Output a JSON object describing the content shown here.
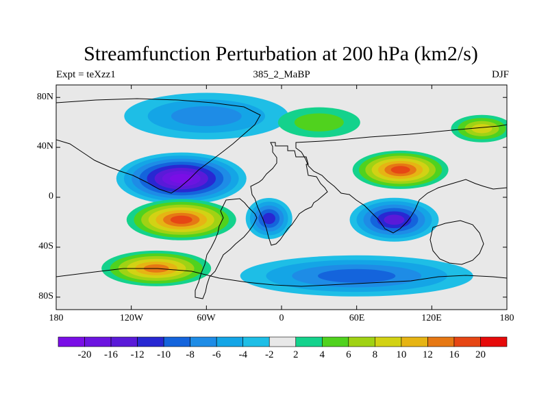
{
  "title": "Streamfunction Perturbation at 200 hPa (km2/s)",
  "subtitle_left": "Expt = teXzz1",
  "subtitle_center": "385_2_MaBP",
  "subtitle_right": "DJF",
  "lat_ticks": [
    "80N",
    "40N",
    "0",
    "40S",
    "80S"
  ],
  "lon_ticks": [
    "180",
    "120W",
    "60W",
    "0",
    "60E",
    "120E",
    "180"
  ],
  "colorbar": {
    "labels": [
      "-20",
      "-16",
      "-12",
      "-10",
      "-8",
      "-6",
      "-4",
      "-2",
      "2",
      "4",
      "6",
      "8",
      "10",
      "12",
      "16",
      "20"
    ],
    "colors": [
      "#7a0ee6",
      "#6c14e0",
      "#5a1ad8",
      "#2828d2",
      "#1464dc",
      "#1e8ce6",
      "#14a5e6",
      "#1ebee6",
      "#e8e8e8",
      "#14d28c",
      "#50d21e",
      "#a0d214",
      "#d2d214",
      "#e6b414",
      "#e67814",
      "#e64614",
      "#e60a0a"
    ]
  },
  "chart_data": {
    "type": "heatmap",
    "variable": "Streamfunction Perturbation at 200 hPa",
    "units": "km2/s",
    "lon_range": [
      -180,
      180
    ],
    "lat_range": [
      -90,
      90
    ],
    "levels": [
      -20,
      -16,
      -12,
      -10,
      -8,
      -6,
      -4,
      -2,
      2,
      4,
      6,
      8,
      10,
      12,
      16,
      20
    ],
    "features": [
      {
        "lon": -80,
        "lat": 15,
        "peak": -21
      },
      {
        "lon": -80,
        "lat": -18,
        "peak": 18
      },
      {
        "lon": -100,
        "lat": -57,
        "peak": 12
      },
      {
        "lon": 95,
        "lat": 22,
        "peak": 18
      },
      {
        "lon": 160,
        "lat": 55,
        "peak": 9
      },
      {
        "lon": 90,
        "lat": -18,
        "peak": -13
      },
      {
        "lon": -10,
        "lat": -17,
        "peak": -11
      },
      {
        "lon": 60,
        "lat": -63,
        "peak": -9
      },
      {
        "lon": -60,
        "lat": 65,
        "peak": -7
      },
      {
        "lon": 30,
        "lat": 60,
        "peak": 4
      }
    ]
  }
}
